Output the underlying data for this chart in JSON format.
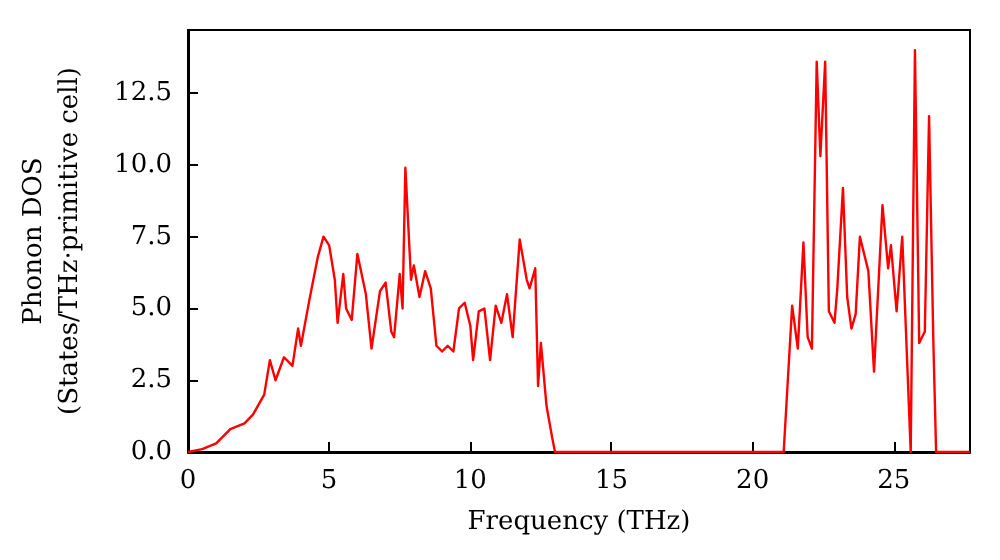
{
  "chart_data": {
    "type": "line",
    "xlabel": "Frequency (THz)",
    "ylabel": "Phonon DOS\n(States/THz·primitive cell)",
    "grid": false,
    "marker": "none",
    "line_style": "solid",
    "xlim": [
      0,
      27.7
    ],
    "xticks": [
      0,
      5,
      10,
      15,
      20,
      25
    ],
    "ylim": [
      0,
      14.7
    ],
    "yticks": [
      {
        "value": 0,
        "label": "0.0"
      },
      {
        "value": 2.5,
        "label": "2.5"
      },
      {
        "value": 5,
        "label": "5.0"
      },
      {
        "value": 7.5,
        "label": "7.5"
      },
      {
        "value": 10,
        "label": "10.0"
      },
      {
        "value": 12.5,
        "label": "12.5"
      }
    ],
    "series": [
      {
        "color": "#ff0000",
        "x": [
          0,
          0.5,
          1,
          1.5,
          2,
          2.3,
          2.7,
          2.9,
          3.1,
          3.4,
          3.7,
          3.9,
          4.0,
          4.3,
          4.6,
          4.8,
          5.0,
          5.2,
          5.3,
          5.5,
          5.6,
          5.8,
          6.0,
          6.3,
          6.5,
          6.8,
          7.0,
          7.2,
          7.3,
          7.5,
          7.6,
          7.7,
          7.9,
          8.0,
          8.2,
          8.4,
          8.6,
          8.8,
          9.0,
          9.2,
          9.4,
          9.6,
          9.8,
          10.0,
          10.1,
          10.3,
          10.5,
          10.7,
          10.9,
          11.1,
          11.3,
          11.5,
          11.75,
          12.0,
          12.1,
          12.3,
          12.4,
          12.5,
          12.7,
          12.9,
          13.0,
          21.1,
          21.4,
          21.6,
          21.8,
          21.95,
          22.1,
          22.27,
          22.4,
          22.57,
          22.7,
          22.9,
          23.0,
          23.2,
          23.35,
          23.5,
          23.65,
          23.8,
          24.1,
          24.3,
          24.6,
          24.8,
          24.9,
          25.1,
          25.3,
          25.6,
          25.75,
          25.9,
          26.1,
          26.25,
          26.4,
          26.5,
          27.7
        ],
        "values": [
          0,
          0.1,
          0.3,
          0.8,
          1.0,
          1.3,
          2.0,
          3.2,
          2.5,
          3.3,
          3.0,
          4.3,
          3.7,
          5.3,
          6.8,
          7.5,
          7.2,
          6.0,
          4.5,
          6.2,
          5.0,
          4.6,
          6.9,
          5.5,
          3.6,
          5.6,
          5.9,
          4.2,
          4.0,
          6.2,
          5.0,
          9.9,
          6.0,
          6.5,
          5.4,
          6.3,
          5.7,
          3.7,
          3.5,
          3.7,
          3.5,
          5.0,
          5.2,
          4.4,
          3.2,
          4.9,
          5.0,
          3.2,
          5.1,
          4.5,
          5.5,
          4.0,
          7.4,
          6.0,
          5.7,
          6.4,
          2.3,
          3.8,
          1.6,
          0.5,
          0,
          0,
          5.1,
          3.6,
          7.3,
          4.0,
          3.6,
          13.6,
          10.3,
          13.6,
          4.9,
          4.5,
          5.7,
          9.2,
          5.4,
          4.3,
          4.8,
          7.5,
          6.3,
          2.8,
          8.6,
          6.4,
          7.2,
          4.9,
          7.5,
          0,
          14.0,
          3.8,
          4.2,
          11.7,
          3.9,
          0,
          0
        ]
      }
    ]
  }
}
